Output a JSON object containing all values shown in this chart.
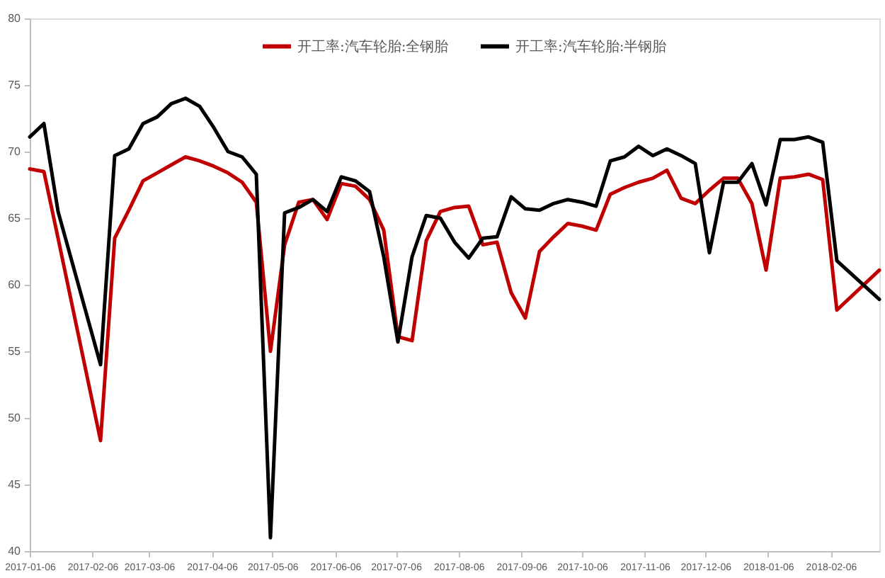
{
  "chart_data": {
    "type": "line",
    "x": [
      "2017-01-06",
      "2017-01-13",
      "2017-01-20",
      "2017-02-10",
      "2017-02-17",
      "2017-02-24",
      "2017-03-03",
      "2017-03-10",
      "2017-03-17",
      "2017-03-24",
      "2017-03-31",
      "2017-04-07",
      "2017-04-14",
      "2017-04-21",
      "2017-04-28",
      "2017-05-05",
      "2017-05-12",
      "2017-05-19",
      "2017-05-26",
      "2017-06-02",
      "2017-06-09",
      "2017-06-16",
      "2017-06-23",
      "2017-06-30",
      "2017-07-07",
      "2017-07-14",
      "2017-07-21",
      "2017-07-28",
      "2017-08-04",
      "2017-08-11",
      "2017-08-18",
      "2017-08-25",
      "2017-09-01",
      "2017-09-08",
      "2017-09-15",
      "2017-09-22",
      "2017-09-29",
      "2017-10-06",
      "2017-10-13",
      "2017-10-20",
      "2017-10-27",
      "2017-11-03",
      "2017-11-10",
      "2017-11-17",
      "2017-11-24",
      "2017-12-01",
      "2017-12-08",
      "2017-12-15",
      "2017-12-22",
      "2017-12-29",
      "2018-01-05",
      "2018-01-12",
      "2018-01-19",
      "2018-01-26",
      "2018-02-02",
      "2018-02-09",
      "2018-03-02"
    ],
    "series": [
      {
        "name": "开工率:汽车轮胎:全钢胎",
        "color": "#c00000",
        "values": [
          68.7,
          68.5,
          63.5,
          48.3,
          63.5,
          65.6,
          67.8,
          68.4,
          69.0,
          69.6,
          69.3,
          68.9,
          68.4,
          67.7,
          66.2,
          55.0,
          63.0,
          66.2,
          66.4,
          64.9,
          67.6,
          67.4,
          66.4,
          64.1,
          56.1,
          55.8,
          63.3,
          65.5,
          65.8,
          65.9,
          63.0,
          63.2,
          59.4,
          57.5,
          62.5,
          63.6,
          64.6,
          64.4,
          64.1,
          66.8,
          67.3,
          67.7,
          68.0,
          68.6,
          66.5,
          66.1,
          67.1,
          68.0,
          68.0,
          66.1,
          61.1,
          68.0,
          68.1,
          68.3,
          67.9,
          58.1,
          61.1
        ]
      },
      {
        "name": "开工率:汽车轮胎:半钢胎",
        "color": "#000000",
        "values": [
          71.1,
          72.1,
          65.5,
          54.0,
          69.7,
          70.2,
          72.1,
          72.6,
          73.6,
          74.0,
          73.4,
          71.8,
          70.0,
          69.6,
          68.3,
          41.0,
          65.4,
          65.8,
          66.4,
          65.5,
          68.1,
          67.8,
          67.0,
          62.1,
          55.7,
          62.1,
          65.2,
          65.0,
          63.2,
          62.0,
          63.5,
          63.6,
          66.6,
          65.7,
          65.6,
          66.1,
          66.4,
          66.2,
          65.9,
          69.3,
          69.6,
          70.4,
          69.7,
          70.2,
          69.7,
          69.1,
          62.4,
          67.7,
          67.7,
          69.1,
          66.0,
          70.9,
          70.9,
          71.1,
          70.7,
          61.8,
          58.9
        ]
      }
    ],
    "xlim": [
      "2017-01-06",
      "2018-03-02"
    ],
    "xticks": [
      "2017-01-06",
      "2017-02-06",
      "2017-03-06",
      "2017-04-06",
      "2017-05-06",
      "2017-06-06",
      "2017-07-06",
      "2017-08-06",
      "2017-09-06",
      "2017-10-06",
      "2017-11-06",
      "2017-12-06",
      "2018-01-06",
      "2018-02-06"
    ],
    "ylim": [
      40,
      80
    ],
    "yticks": [
      40,
      45,
      50,
      55,
      60,
      65,
      70,
      75,
      80
    ],
    "legend": "top",
    "marker": "none",
    "line_style": "solid"
  }
}
